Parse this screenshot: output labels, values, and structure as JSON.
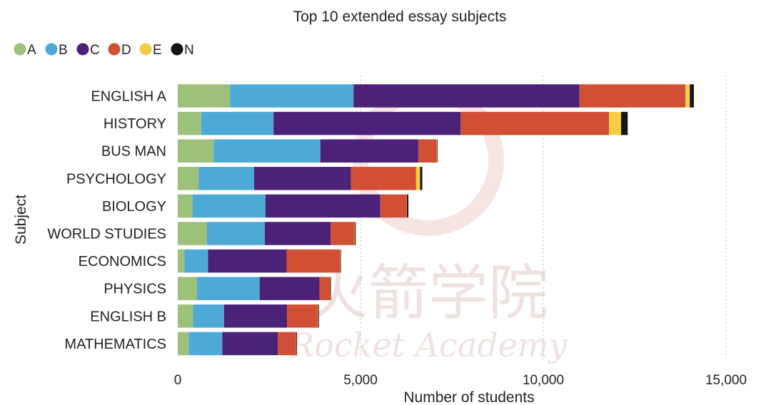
{
  "chart_data": {
    "type": "bar",
    "orientation": "horizontal",
    "stacked": true,
    "title": "Top 10 extended essay subjects",
    "xlabel": "Number of students",
    "ylabel": "Subject",
    "xlim": [
      0,
      15000
    ],
    "xticks": [
      0,
      5000,
      10000,
      15000
    ],
    "xtick_labels": [
      "0",
      "5,000",
      "10,000",
      "15,000"
    ],
    "grid": "vertical dotted",
    "legend_position": "top-left",
    "categories": [
      "ENGLISH A",
      "HISTORY",
      "BUS MAN",
      "PSYCHOLOGY",
      "BIOLOGY",
      "WORLD STUDIES",
      "ECONOMICS",
      "PHYSICS",
      "ENGLISH B",
      "MATHEMATICS"
    ],
    "series": [
      {
        "name": "A",
        "color": "#9dc07a",
        "values": [
          1430,
          640,
          980,
          570,
          410,
          800,
          180,
          520,
          420,
          300
        ]
      },
      {
        "name": "B",
        "color": "#4daad6",
        "values": [
          3380,
          1980,
          2920,
          1520,
          1990,
          1580,
          650,
          1720,
          850,
          920
        ]
      },
      {
        "name": "C",
        "color": "#4b2277",
        "values": [
          6180,
          5120,
          2680,
          2650,
          3140,
          1800,
          2150,
          1640,
          1720,
          1520
        ]
      },
      {
        "name": "D",
        "color": "#d14f35",
        "values": [
          2900,
          4060,
          500,
          1780,
          720,
          660,
          1460,
          290,
          850,
          500
        ]
      },
      {
        "name": "E",
        "color": "#f2cd45",
        "values": [
          120,
          330,
          10,
          110,
          10,
          10,
          10,
          5,
          10,
          5
        ]
      },
      {
        "name": "N",
        "color": "#151515",
        "values": [
          110,
          180,
          10,
          60,
          40,
          20,
          10,
          5,
          10,
          5
        ]
      }
    ]
  },
  "watermark": {
    "line1": "火箭学院",
    "line2": "Rocket Academy"
  }
}
